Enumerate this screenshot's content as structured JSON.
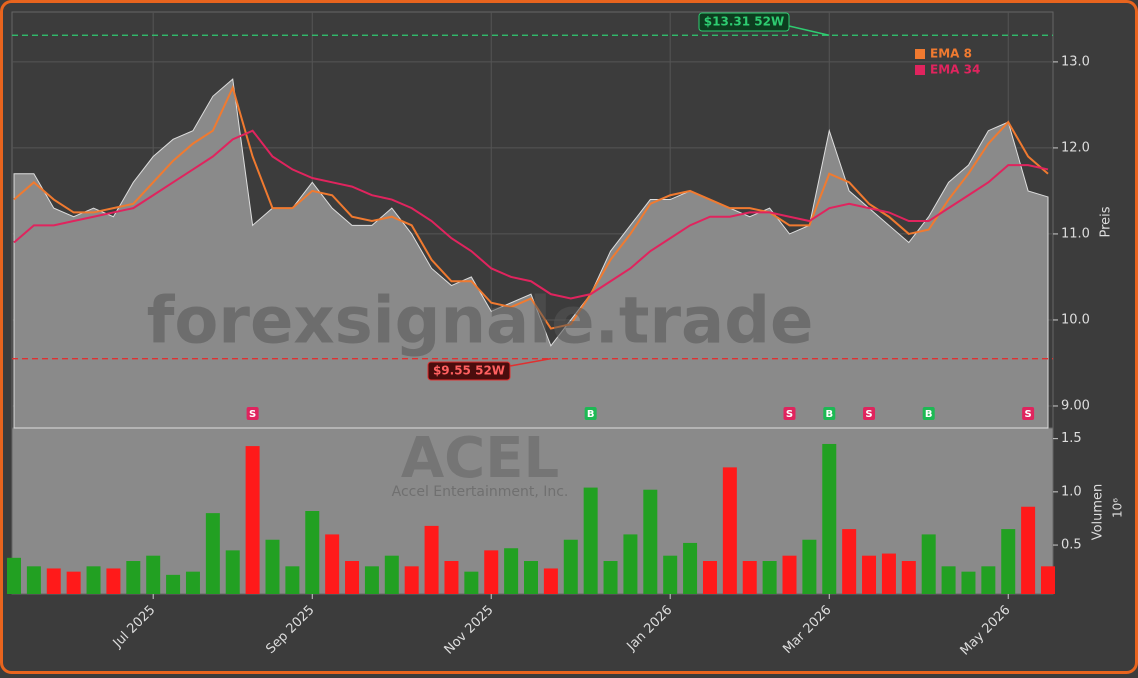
{
  "chart_data": {
    "type": "stock",
    "watermark": "forexsignale.trade",
    "ticker": "ACEL",
    "company": "Accel Entertainment, Inc.",
    "categories": [
      null,
      null,
      null,
      null,
      null,
      null,
      null,
      "Jul 2025",
      null,
      null,
      null,
      null,
      null,
      null,
      null,
      "Sep 2025",
      null,
      null,
      null,
      null,
      null,
      null,
      null,
      null,
      "Nov 2025",
      null,
      null,
      null,
      null,
      null,
      null,
      null,
      null,
      "Jan 2026",
      null,
      null,
      null,
      null,
      null,
      null,
      null,
      "Mar 2026",
      null,
      null,
      null,
      null,
      null,
      null,
      null,
      null,
      "May 2026",
      null,
      null
    ],
    "close": {
      "color": "#8a8a8a",
      "values": [
        11.7,
        11.7,
        11.3,
        11.2,
        11.3,
        11.2,
        11.6,
        11.9,
        12.1,
        12.2,
        12.6,
        12.8,
        11.1,
        11.3,
        11.3,
        11.6,
        11.3,
        11.1,
        11.1,
        11.3,
        11.0,
        10.6,
        10.4,
        10.5,
        10.1,
        10.2,
        10.3,
        9.7,
        10.0,
        10.3,
        10.8,
        11.1,
        11.4,
        11.4,
        11.5,
        11.4,
        11.3,
        11.2,
        11.3,
        11.0,
        11.1,
        12.2,
        11.5,
        11.3,
        11.1,
        10.9,
        11.2,
        11.6,
        11.8,
        12.2,
        12.3,
        11.5,
        11.43
      ]
    },
    "series": [
      {
        "name": "EMA 8",
        "color": "#f07a30",
        "values": [
          11.4,
          11.6,
          11.4,
          11.25,
          11.25,
          11.3,
          11.35,
          11.6,
          11.85,
          12.05,
          12.2,
          12.7,
          11.9,
          11.3,
          11.3,
          11.5,
          11.45,
          11.2,
          11.15,
          11.2,
          11.1,
          10.7,
          10.45,
          10.45,
          10.2,
          10.15,
          10.25,
          9.9,
          9.95,
          10.3,
          10.7,
          11.0,
          11.35,
          11.45,
          11.5,
          11.4,
          11.3,
          11.3,
          11.25,
          11.1,
          11.1,
          11.7,
          11.6,
          11.35,
          11.2,
          11.0,
          11.05,
          11.4,
          11.7,
          12.05,
          12.3,
          11.9,
          11.7
        ]
      },
      {
        "name": "EMA 34",
        "color": "#e0245e",
        "values": [
          10.9,
          11.1,
          11.1,
          11.15,
          11.2,
          11.25,
          11.3,
          11.45,
          11.6,
          11.75,
          11.9,
          12.1,
          12.2,
          11.9,
          11.75,
          11.65,
          11.6,
          11.55,
          11.45,
          11.4,
          11.3,
          11.15,
          10.95,
          10.8,
          10.6,
          10.5,
          10.45,
          10.3,
          10.25,
          10.3,
          10.45,
          10.6,
          10.8,
          10.95,
          11.1,
          11.2,
          11.2,
          11.25,
          11.25,
          11.2,
          11.15,
          11.3,
          11.35,
          11.3,
          11.25,
          11.15,
          11.15,
          11.3,
          11.45,
          11.6,
          11.8,
          11.8,
          11.75
        ]
      }
    ],
    "ylim": [
      8.744,
      13.58
    ],
    "yticks": [
      {
        "value": 9,
        "label": "9.00"
      },
      {
        "value": 10,
        "label": "10.0"
      },
      {
        "value": 11,
        "label": "11.0"
      },
      {
        "value": 12,
        "label": "12.0"
      },
      {
        "value": 13,
        "label": "13.0"
      }
    ],
    "ylabel": "Preis",
    "grid": true,
    "legend": "upper right",
    "high": {
      "value": 13.31,
      "label": "$13.31 52W",
      "color": "#2ecc71"
    },
    "low": {
      "value": 9.55,
      "label": "$9.55 52W",
      "color": "#e03030"
    },
    "signals": [
      null,
      null,
      null,
      null,
      null,
      null,
      null,
      null,
      null,
      null,
      null,
      null,
      "S",
      null,
      null,
      null,
      null,
      null,
      null,
      null,
      null,
      null,
      null,
      null,
      null,
      null,
      null,
      null,
      null,
      "B",
      null,
      null,
      null,
      null,
      null,
      null,
      null,
      null,
      null,
      "S",
      null,
      "B",
      null,
      "S",
      null,
      null,
      "B",
      null,
      null,
      null,
      null,
      "S",
      null
    ],
    "signal_colors": {
      "S": "#e0245e",
      "B": "#1db954"
    },
    "volume": {
      "values": [
        0.38,
        0.3,
        0.28,
        0.25,
        0.3,
        0.28,
        0.35,
        0.4,
        0.22,
        0.25,
        0.8,
        0.45,
        1.43,
        0.55,
        0.3,
        0.82,
        0.6,
        0.35,
        0.3,
        0.4,
        0.3,
        0.68,
        0.35,
        0.25,
        0.45,
        0.47,
        0.35,
        0.28,
        0.55,
        1.04,
        0.35,
        0.6,
        1.02,
        0.4,
        0.52,
        0.35,
        1.23,
        0.35,
        0.35,
        0.4,
        0.55,
        1.45,
        0.65,
        0.4,
        0.42,
        0.35,
        0.6,
        0.3,
        0.25,
        0.3,
        0.65,
        0.86,
        0.3
      ],
      "up_color": "#22a022",
      "down_color": "#ff1a1a",
      "ylim": [
        0.04,
        1.6
      ],
      "yticks": [
        0.5,
        {
          "value": 1,
          "label": "1.0"
        },
        1.5
      ],
      "ylabel": "Volumen",
      "unit": "10⁶"
    }
  }
}
